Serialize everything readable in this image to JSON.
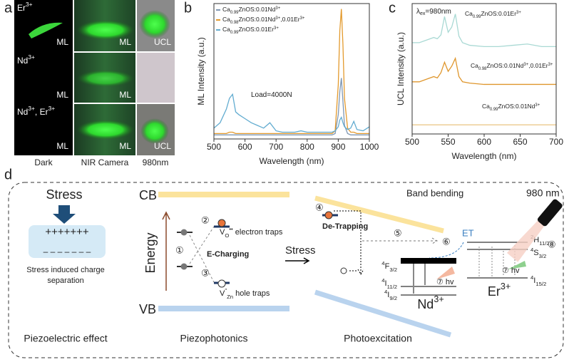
{
  "panel_a": {
    "letter": "a",
    "rows": [
      {
        "label": "Er3+",
        "tags": [
          "ML",
          "ML",
          "UCL"
        ]
      },
      {
        "label": "Nd3+",
        "tags": [
          "ML",
          "ML"
        ]
      },
      {
        "label": "Nd3+, Er3+",
        "tags": [
          "ML",
          "ML",
          "UCL"
        ]
      }
    ],
    "columns": [
      "Dark",
      "NIR Camera",
      "980nm"
    ]
  },
  "chart_data": [
    {
      "type": "line",
      "label": "b",
      "xlabel": "Wavelength (nm)",
      "ylabel": "ML Intensity (a.u.)",
      "annotation": "Load=4000N",
      "x": [
        500,
        520,
        540,
        550,
        560,
        570,
        580,
        600,
        620,
        640,
        660,
        680,
        700,
        720,
        740,
        760,
        780,
        800,
        820,
        840,
        860,
        880,
        890,
        900,
        905,
        910,
        915,
        920,
        930,
        940,
        950,
        960,
        980,
        1000
      ],
      "series": [
        {
          "name": "Ca0.99ZnOS:0.01Nd3+",
          "color": "#7f97b3",
          "values": [
            3,
            3,
            3,
            3,
            3,
            3,
            3,
            3,
            3,
            3,
            3,
            3,
            3,
            3,
            3,
            3,
            3,
            3,
            3,
            3,
            3,
            3,
            4,
            18,
            35,
            45,
            28,
            10,
            4,
            3,
            3,
            3,
            3,
            3
          ]
        },
        {
          "name": "Ca0.98ZnOS:0.01Nd3+,0.01Er3+",
          "color": "#e39a2d",
          "values": [
            4,
            4,
            4,
            5,
            5,
            4,
            4,
            4,
            4,
            4,
            4,
            4,
            4,
            4,
            4,
            4,
            4,
            4,
            4,
            4,
            4,
            4,
            6,
            40,
            80,
            96,
            70,
            30,
            8,
            5,
            5,
            4,
            4,
            4
          ]
        },
        {
          "name": "Ca0.99ZnOS:0.01Er3+",
          "color": "#62acd0",
          "values": [
            8,
            12,
            22,
            30,
            33,
            20,
            18,
            15,
            12,
            10,
            8,
            12,
            6,
            5,
            5,
            5,
            6,
            5,
            5,
            5,
            5,
            5,
            6,
            9,
            14,
            16,
            12,
            9,
            7,
            8,
            13,
            7,
            6,
            9
          ]
        }
      ],
      "xlim": [
        500,
        1000
      ],
      "xticks": [
        500,
        600,
        700,
        800,
        900,
        1000
      ],
      "ylim": [
        0,
        100
      ]
    },
    {
      "type": "line",
      "label": "c",
      "xlabel": "Wavelength (nm)",
      "ylabel": "UCL Intensity (a.u.)",
      "annotation": "λex=980nm",
      "x": [
        500,
        510,
        520,
        530,
        535,
        540,
        545,
        550,
        555,
        560,
        565,
        570,
        580,
        600,
        620,
        640,
        660,
        680,
        700
      ],
      "series": [
        {
          "name": "Ca0.99ZnOS:0.01Er3+",
          "color": "#a9d9d4",
          "values": [
            70,
            70,
            72,
            74,
            73,
            76,
            90,
            78,
            82,
            92,
            75,
            70,
            68,
            67,
            67,
            68,
            69,
            67,
            67
          ]
        },
        {
          "name": "Ca0.98ZnOS:0.01Nd3+,0.01Er3+",
          "color": "#df962c",
          "values": [
            40,
            40,
            42,
            44,
            43,
            47,
            55,
            48,
            52,
            58,
            44,
            40,
            39,
            38,
            38,
            38,
            38,
            38,
            38
          ]
        },
        {
          "name": "Ca0.99ZnOS:0.01Nd3+",
          "color": "#ebc98c",
          "values": [
            7,
            7,
            7,
            7,
            7,
            7,
            7,
            7,
            7,
            7,
            7,
            7,
            7,
            7,
            7,
            7,
            7,
            7,
            7
          ]
        }
      ],
      "xlim": [
        500,
        700
      ],
      "xticks": [
        500,
        550,
        600,
        650,
        700
      ],
      "ylim": [
        0,
        100
      ]
    }
  ],
  "panel_d": {
    "letter": "d",
    "stress": "Stress",
    "plus": "+++++++",
    "minus": "– – – – – – –",
    "caption1": "Stress induced charge",
    "caption2": "separation",
    "section1": "Piezoelectric effect",
    "section2": "Piezophotonics",
    "section3": "Photoexcitation",
    "cb": "CB",
    "vb": "VB",
    "energy": "Energy",
    "n1": "①",
    "n2": "②",
    "n3": "③",
    "n4": "④",
    "n5": "⑤",
    "n6": "⑥",
    "n7a": "⑦ hv",
    "n7b": "⑦ hv",
    "n8": "⑧",
    "electron_traps": "VO•• electron traps",
    "hole_traps": "V″Zn hole traps",
    "echarging": "E-Charging",
    "stress2": "Stress",
    "band_bending": "Band bending",
    "detrapping": "De-Trapping",
    "et": "ET",
    "nd_levels": [
      "4F3/2",
      "4I11/2",
      "4I9/2"
    ],
    "nd": "Nd3+",
    "er_levels": [
      "2H11/2",
      "4S3/2",
      "4I15/2"
    ],
    "er": "Er3+",
    "laser": "980 nm"
  }
}
